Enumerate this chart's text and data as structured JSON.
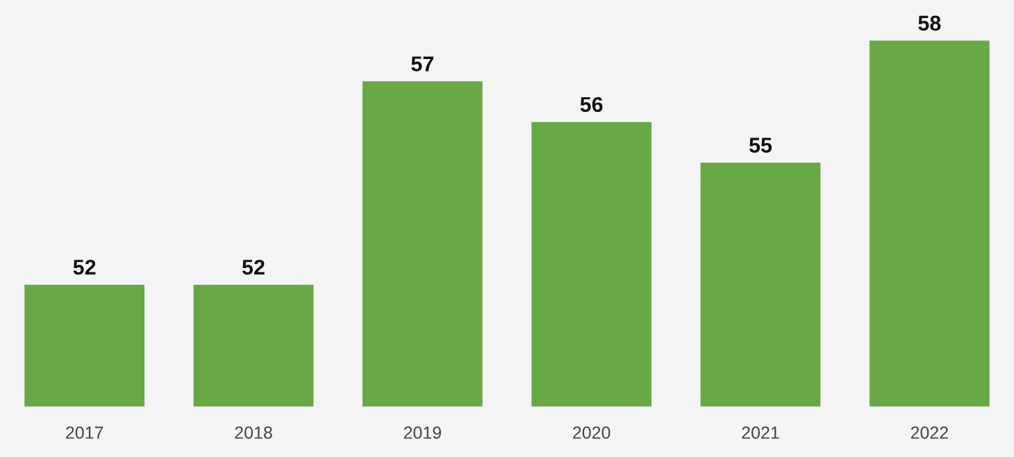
{
  "chart_data": {
    "type": "bar",
    "categories": [
      "2017",
      "2018",
      "2019",
      "2020",
      "2021",
      "2022"
    ],
    "values": [
      52,
      52,
      57,
      56,
      55,
      58
    ],
    "color": "#69a847",
    "ylim": [
      49,
      59
    ],
    "data_labels": true,
    "grid": false,
    "legend": false,
    "tick_labels": "x"
  }
}
